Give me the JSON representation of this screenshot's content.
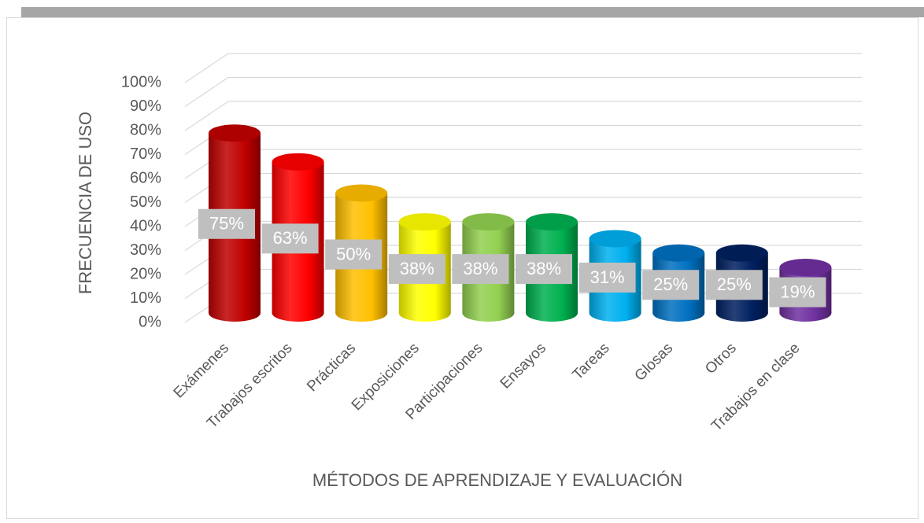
{
  "chart_data": {
    "type": "bar",
    "x_label": "MÉTODOS DE APRENDIZAJE Y EVALUACIÓN",
    "y_label": "FRECUENCIA DE USO",
    "categories": [
      "Exámenes",
      "Trabajos escritos",
      "Prácticas",
      "Exposiciones",
      "Participaciones",
      "Ensayos",
      "Tareas",
      "Glosas",
      "Otros",
      "Trabajos en clase"
    ],
    "values": [
      75,
      63,
      50,
      38,
      38,
      38,
      31,
      25,
      25,
      19
    ],
    "value_labels": [
      "75%",
      "63%",
      "50%",
      "38%",
      "38%",
      "38%",
      "31%",
      "25%",
      "25%",
      "19%"
    ],
    "colors": [
      "#c00000",
      "#ff0000",
      "#ffc000",
      "#ffff00",
      "#92d050",
      "#00b050",
      "#00b0f0",
      "#0070c0",
      "#002060",
      "#7030a0"
    ],
    "ylim": [
      0,
      100
    ],
    "yticks": [
      {
        "value": 0,
        "label": "0%"
      },
      {
        "value": 10,
        "label": "10%"
      },
      {
        "value": 20,
        "label": "20%"
      },
      {
        "value": 30,
        "label": "30%"
      },
      {
        "value": 40,
        "label": "40%"
      },
      {
        "value": 50,
        "label": "50%"
      },
      {
        "value": 60,
        "label": "60%"
      },
      {
        "value": 70,
        "label": "70%"
      },
      {
        "value": 80,
        "label": "80%"
      },
      {
        "value": 90,
        "label": "90%"
      },
      {
        "value": 100,
        "label": "100%"
      }
    ],
    "grid": true
  }
}
